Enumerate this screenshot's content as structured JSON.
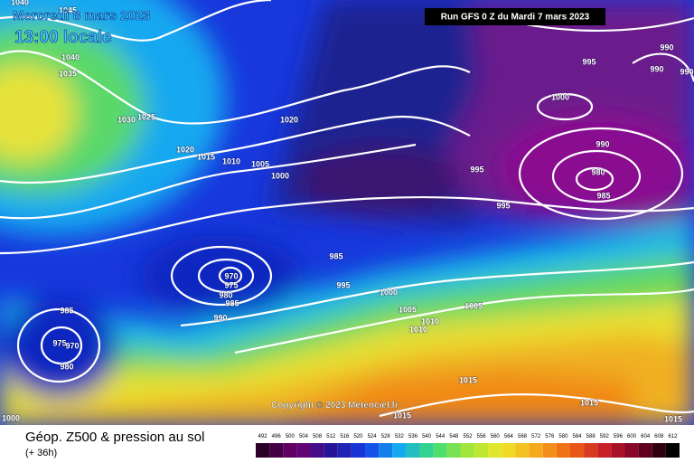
{
  "header": {
    "date": "Mercredi 8 mars 2023",
    "time": "13:00 locale",
    "run": "Run GFS 0 Z du Mardi 7 mars 2023"
  },
  "map": {
    "isobar_labels": [
      1040,
      1045,
      1040,
      1035,
      1030,
      1025,
      1020,
      1020,
      1015,
      1010,
      1005,
      1000,
      985,
      995,
      970,
      975,
      980,
      985,
      990,
      1000,
      1005,
      1010,
      1010,
      1005,
      985,
      975,
      970,
      980,
      1000,
      995,
      990,
      990,
      990,
      1000,
      990,
      980,
      985,
      995,
      995,
      1015,
      1015,
      1015,
      1015
    ],
    "copyright": "Copyright © 2023 Meteociel.fr"
  },
  "footer": {
    "title": "Géop. Z500 & pression au sol",
    "lead": "(+ 36h)",
    "scale": [
      492,
      496,
      500,
      504,
      508,
      512,
      516,
      520,
      524,
      528,
      532,
      536,
      540,
      544,
      548,
      552,
      556,
      560,
      564,
      568,
      572,
      576,
      580,
      584,
      588,
      592,
      596,
      600,
      604,
      608,
      612
    ]
  }
}
